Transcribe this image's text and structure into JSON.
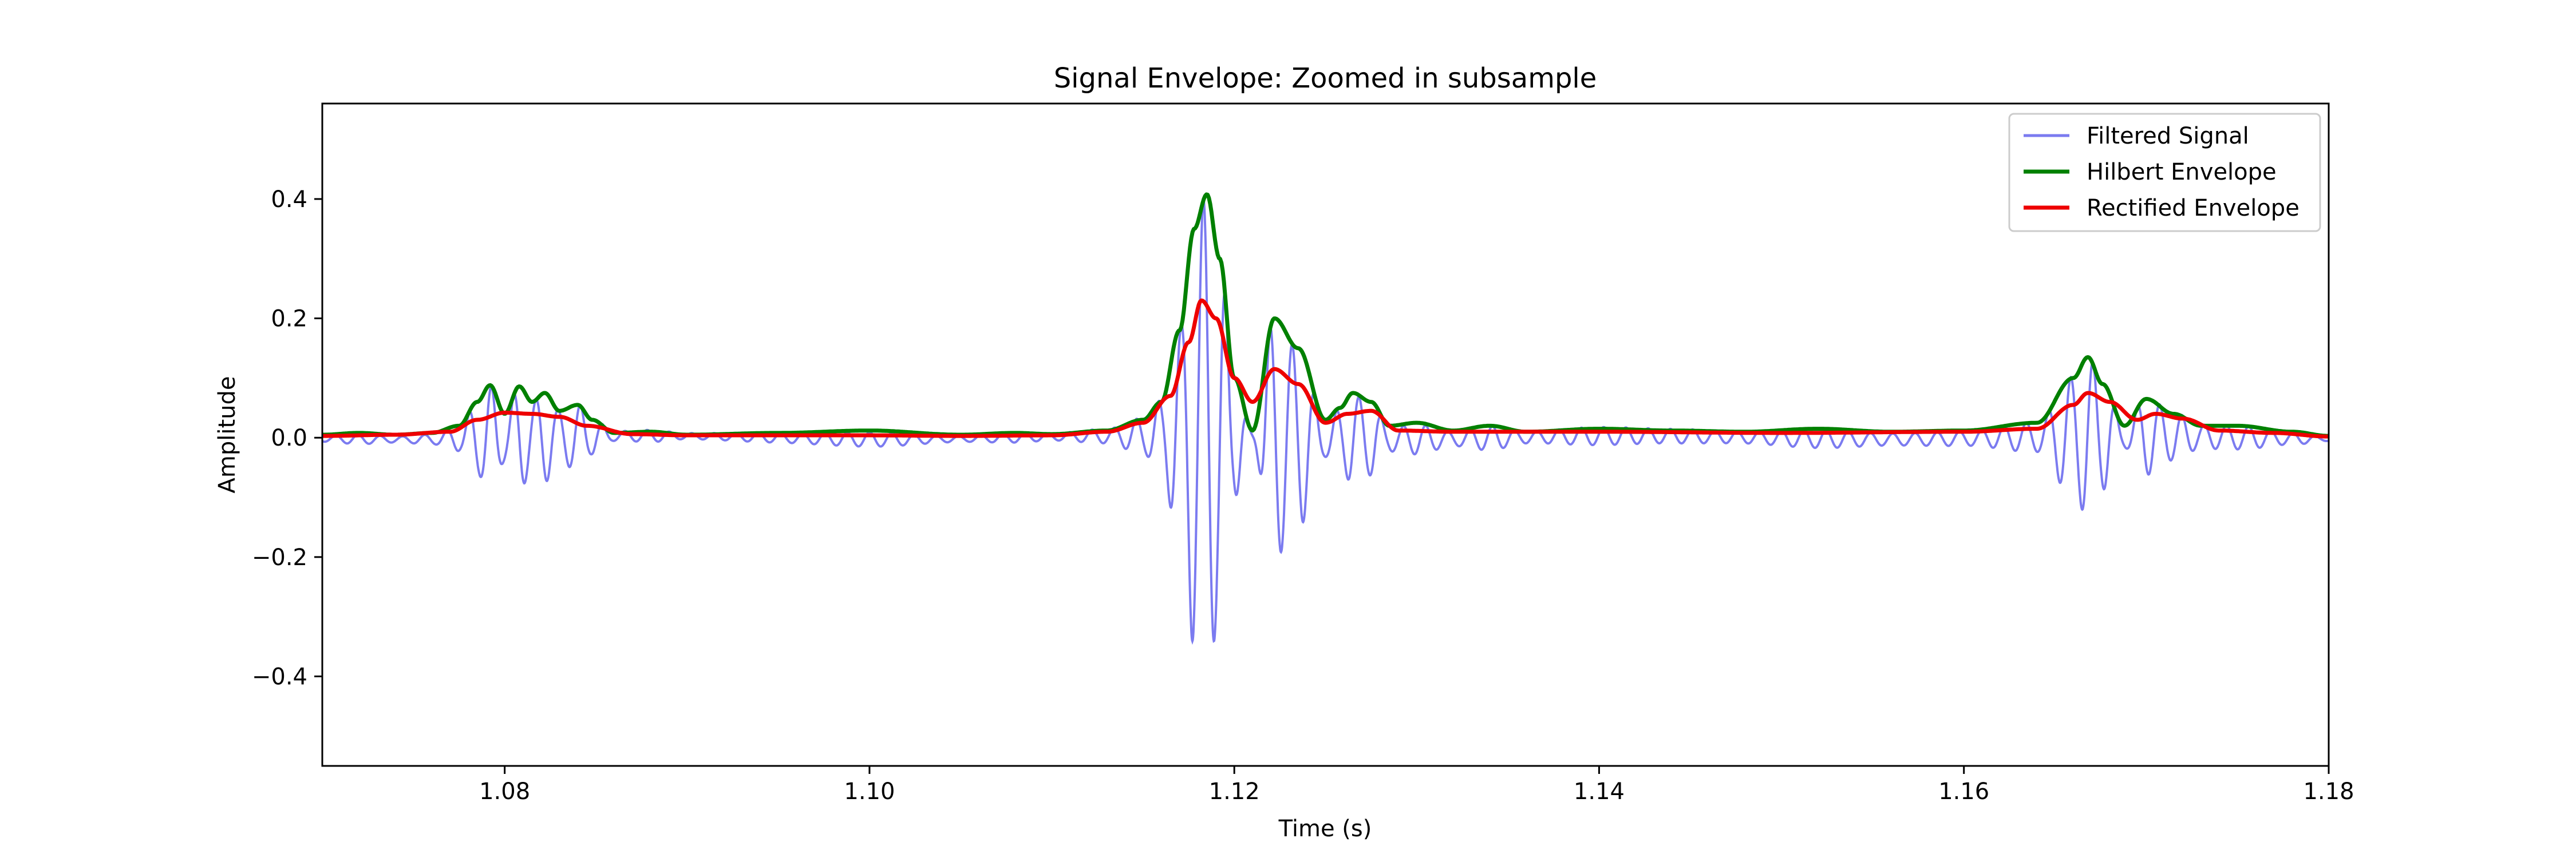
{
  "chart_data": {
    "type": "line",
    "title": "Signal Envelope: Zoomed in subsample",
    "xlabel": "Time (s)",
    "ylabel": "Amplitude",
    "xlim": [
      1.07,
      1.18
    ],
    "ylim": [
      -0.55,
      0.56
    ],
    "xticks": [
      1.08,
      1.1,
      1.12,
      1.14,
      1.16,
      1.18
    ],
    "xtick_labels": [
      "1.08",
      "1.10",
      "1.12",
      "1.14",
      "1.16",
      "1.18"
    ],
    "yticks": [
      0.4,
      0.2,
      0.0,
      -0.2,
      -0.4
    ],
    "ytick_labels": [
      "0.4",
      "0.2",
      "0.0",
      "−0.2",
      "−0.4"
    ],
    "grid": false,
    "legend_position": "top-right",
    "carrier_freq_hz": 820,
    "series": [
      {
        "name": "Filtered Signal",
        "color": "#7b7bf0",
        "role": "signal"
      },
      {
        "name": "Hilbert Envelope",
        "color": "#008000",
        "role": "envelope",
        "x": [
          1.07,
          1.072,
          1.074,
          1.076,
          1.0775,
          1.0785,
          1.0792,
          1.08,
          1.0808,
          1.0815,
          1.0822,
          1.083,
          1.084,
          1.0848,
          1.086,
          1.088,
          1.09,
          1.095,
          1.1,
          1.105,
          1.108,
          1.11,
          1.113,
          1.115,
          1.116,
          1.117,
          1.1178,
          1.1185,
          1.1192,
          1.12,
          1.121,
          1.1222,
          1.1235,
          1.125,
          1.1258,
          1.1265,
          1.1275,
          1.1285,
          1.13,
          1.132,
          1.134,
          1.136,
          1.14,
          1.144,
          1.148,
          1.152,
          1.156,
          1.16,
          1.164,
          1.166,
          1.1668,
          1.1676,
          1.1688,
          1.17,
          1.1715,
          1.173,
          1.175,
          1.178,
          1.18
        ],
        "y": [
          0.005,
          0.008,
          0.005,
          0.008,
          0.02,
          0.06,
          0.088,
          0.04,
          0.086,
          0.06,
          0.075,
          0.045,
          0.055,
          0.03,
          0.008,
          0.01,
          0.005,
          0.008,
          0.012,
          0.005,
          0.008,
          0.006,
          0.012,
          0.03,
          0.06,
          0.18,
          0.35,
          0.408,
          0.3,
          0.1,
          0.012,
          0.2,
          0.15,
          0.03,
          0.05,
          0.075,
          0.06,
          0.02,
          0.025,
          0.012,
          0.02,
          0.01,
          0.015,
          0.012,
          0.01,
          0.015,
          0.01,
          0.012,
          0.025,
          0.1,
          0.135,
          0.09,
          0.02,
          0.065,
          0.04,
          0.02,
          0.02,
          0.01,
          0.003
        ]
      },
      {
        "name": "Rectified Envelope",
        "color": "#ee0000",
        "role": "envelope",
        "x": [
          1.07,
          1.074,
          1.077,
          1.0785,
          1.08,
          1.0815,
          1.083,
          1.0845,
          1.087,
          1.09,
          1.095,
          1.1,
          1.105,
          1.11,
          1.113,
          1.115,
          1.1165,
          1.1175,
          1.1182,
          1.119,
          1.12,
          1.121,
          1.1222,
          1.1235,
          1.125,
          1.1262,
          1.1275,
          1.129,
          1.132,
          1.14,
          1.15,
          1.16,
          1.164,
          1.166,
          1.1668,
          1.168,
          1.1695,
          1.1705,
          1.172,
          1.174,
          1.177,
          1.18
        ],
        "y": [
          0.003,
          0.005,
          0.01,
          0.03,
          0.042,
          0.04,
          0.035,
          0.02,
          0.006,
          0.004,
          0.004,
          0.004,
          0.003,
          0.004,
          0.01,
          0.025,
          0.07,
          0.16,
          0.23,
          0.2,
          0.1,
          0.06,
          0.115,
          0.09,
          0.025,
          0.04,
          0.045,
          0.012,
          0.01,
          0.01,
          0.008,
          0.01,
          0.015,
          0.055,
          0.075,
          0.06,
          0.03,
          0.04,
          0.032,
          0.012,
          0.008,
          0.002
        ]
      }
    ]
  }
}
